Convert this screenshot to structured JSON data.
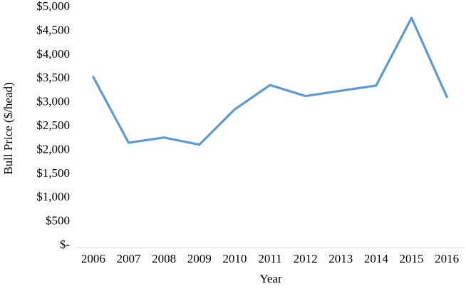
{
  "chart_data": {
    "type": "line",
    "title": "",
    "xlabel": "Year",
    "ylabel": "Bull Price ($/head)",
    "categories": [
      "2006",
      "2007",
      "2008",
      "2009",
      "2010",
      "2011",
      "2012",
      "2013",
      "2014",
      "2015",
      "2016"
    ],
    "series": [
      {
        "values": [
          3580,
          2200,
          2310,
          2160,
          2900,
          3410,
          3180,
          3290,
          3400,
          4820,
          3160
        ],
        "color": "#5B9BD5"
      }
    ],
    "ylim": [
      0,
      5000
    ],
    "yticks": [
      0,
      500,
      1000,
      1500,
      2000,
      2500,
      3000,
      3500,
      4000,
      4500,
      5000
    ],
    "ytick_labels": [
      "$-",
      "$500",
      "$1,000",
      "$1,500",
      "$2,000",
      "$2,500",
      "$3,000",
      "$3,500",
      "$4,000",
      "$4,500",
      "$5,000"
    ],
    "grid": false,
    "legend": "none",
    "axis_color": "#D9D9D9"
  }
}
